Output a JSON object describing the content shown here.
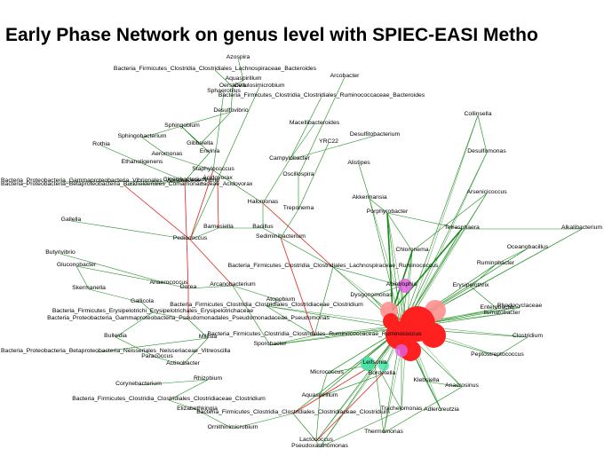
{
  "title": "Early Phase Network on genus level with SPIEC-EASI Metho",
  "edge_colors": {
    "positive": "#1a8a1a",
    "negative": "#e02020"
  },
  "node_colors": {
    "default": "#000000",
    "hub": "#ff2020",
    "hub_light": "#ff9090",
    "magenta": "#e060e0",
    "teal": "#40e0a0"
  },
  "nodes": [
    {
      "id": "n0",
      "label": "Azospira"
    },
    {
      "id": "n1",
      "label": "Bacteria_Firmicutes_Clostridia_Clostridiales_Lachnospiraceae_Bacteroides"
    },
    {
      "id": "n2",
      "label": "Aquaspirillum"
    },
    {
      "id": "n3",
      "label": "Oerskovia"
    },
    {
      "id": "n4",
      "label": "Cellulosimicrobium"
    },
    {
      "id": "n5",
      "label": "Arcobacter"
    },
    {
      "id": "n6",
      "label": "Sphaerotilus"
    },
    {
      "id": "n7",
      "label": "Bacteria_Firmicutes_Clostridia_Clostridiales_Ruminococcaceae_Bacteroides"
    },
    {
      "id": "n8",
      "label": "Desulfovibrio"
    },
    {
      "id": "n9",
      "label": "Collinsella"
    },
    {
      "id": "n10",
      "label": "Macellibacteroides"
    },
    {
      "id": "n11",
      "label": "Sphingobium"
    },
    {
      "id": "n12",
      "label": "Sphingobacterium"
    },
    {
      "id": "n13",
      "label": "Gibbsiella"
    },
    {
      "id": "n14",
      "label": "Desulfitobacterium"
    },
    {
      "id": "n15",
      "label": "Desulfomonas"
    },
    {
      "id": "n16",
      "label": "Aeromonas"
    },
    {
      "id": "n17",
      "label": "YRC22"
    },
    {
      "id": "n18",
      "label": "Rothia"
    },
    {
      "id": "n19",
      "label": "Erwinia"
    },
    {
      "id": "n20",
      "label": "Ethanoligenens"
    },
    {
      "id": "n21",
      "label": "Campylobacter"
    },
    {
      "id": "n22",
      "label": "Alistipes"
    },
    {
      "id": "n23",
      "label": "Bacteria_Proteobacteria_Gammaproteobacteria_Vibrionales_Vibrionaceae_Vibrio"
    },
    {
      "id": "n24",
      "label": "Bacteria_Proteobacteria_Betaproteobacteria_Burkholderiales_Comamonadaceae_Acidovorax"
    },
    {
      "id": "n25",
      "label": "Staphylococcus"
    },
    {
      "id": "n26",
      "label": "Acidovorax"
    },
    {
      "id": "n27",
      "label": "Cloacibacterium"
    },
    {
      "id": "n28",
      "label": "Oscillospira"
    },
    {
      "id": "n29",
      "label": "Akkermansia"
    },
    {
      "id": "n30",
      "label": "Arsenicicoccus"
    },
    {
      "id": "n31",
      "label": "Gallella"
    },
    {
      "id": "n32",
      "label": "Halomonas"
    },
    {
      "id": "n33",
      "label": "Treponema"
    },
    {
      "id": "n34",
      "label": "Porphyrobacter"
    },
    {
      "id": "n35",
      "label": "Alkalibacterium"
    },
    {
      "id": "n36",
      "label": "Tetrasphaera"
    },
    {
      "id": "n37",
      "label": "Oceanobacillus"
    },
    {
      "id": "n38",
      "label": "Pediococcus"
    },
    {
      "id": "n39",
      "label": "Barnesiella"
    },
    {
      "id": "n40",
      "label": "Bacillus"
    },
    {
      "id": "n41",
      "label": "Sediminibacterium"
    },
    {
      "id": "n42",
      "label": "Chloronema"
    },
    {
      "id": "n43",
      "label": "Butyrivibrio"
    },
    {
      "id": "n44",
      "label": "Gluconobacter"
    },
    {
      "id": "n45",
      "label": "Ruminobacter"
    },
    {
      "id": "n46",
      "label": "Bacteria_Firmicutes_Clostridia_Clostridiales_Lachnospiraceae_Ruminococcus"
    },
    {
      "id": "n47",
      "label": "Skermanella"
    },
    {
      "id": "n48",
      "label": "Erysipelothrix"
    },
    {
      "id": "n49",
      "label": "Anaerococcus"
    },
    {
      "id": "n50",
      "label": "Dorea"
    },
    {
      "id": "n51",
      "label": "Abiotrophia"
    },
    {
      "id": "n52",
      "label": "Enterobacter"
    },
    {
      "id": "n53",
      "label": "Arcanobacterium"
    },
    {
      "id": "n54",
      "label": "Dysgonomonas"
    },
    {
      "id": "n55",
      "label": "Gallicola"
    },
    {
      "id": "n56",
      "label": "Atopobium"
    },
    {
      "id": "n57",
      "label": "Bacteria_Firmicutes_Clostridia_Clostridiales_Clostridiaceae_Clostridium"
    },
    {
      "id": "n58",
      "label": "Bacteria_Firmicutes_Erysipelotrichi_Erysipelotrichales_Erysipelotrichaceae"
    },
    {
      "id": "n59",
      "label": "Bacteria_Proteobacteria_Gammaproteobacteria_Pseudomonadales_Pseudomonadaceae_Pseudomonas"
    },
    {
      "id": "n60",
      "label": "Rhodocyclaceae"
    },
    {
      "id": "n61",
      "label": "Ilumatobacter"
    },
    {
      "id": "n62",
      "label": "Bulleidia"
    },
    {
      "id": "n63",
      "label": "Bacteria_Firmicutes_Clostridia_Clostridiales_Ruminococcaceae_Ruminococcus"
    },
    {
      "id": "n64",
      "label": "Millisia"
    },
    {
      "id": "n65",
      "label": "Bacteria_Proteobacteria_Betaproteobacteria_Neisseriales_Neisseriaceae_Vitreoscilla"
    },
    {
      "id": "n66",
      "label": "Sporobacter"
    },
    {
      "id": "n67",
      "label": "Clostridium"
    },
    {
      "id": "n68",
      "label": "Peptostreptococcus"
    },
    {
      "id": "n69",
      "label": "Paracoccus"
    },
    {
      "id": "n70",
      "label": "Actinobacter"
    },
    {
      "id": "n71",
      "label": "Micrococcus"
    },
    {
      "id": "n72",
      "label": "Leifsonia"
    },
    {
      "id": "n73",
      "label": "Klebsiella"
    },
    {
      "id": "n74",
      "label": "Anaerosinus"
    },
    {
      "id": "n75",
      "label": "Corynebacterium"
    },
    {
      "id": "n76",
      "label": "Bordetella"
    },
    {
      "id": "n77",
      "label": "Rhizobium"
    },
    {
      "id": "n78",
      "label": "Bacteria_Firmicutes_Clostridia_Clostridiales_Clostridiaceae_Clostridium"
    },
    {
      "id": "n79",
      "label": "Aquaspirillum"
    },
    {
      "id": "n80",
      "label": "Adlercreutzia"
    },
    {
      "id": "n81",
      "label": "Elizabethkingia"
    },
    {
      "id": "n82",
      "label": "Trachelomonas"
    },
    {
      "id": "n83",
      "label": "Bacteria_Firmicutes_Clostridia_Clostridiales_Clostridiaceae_Clostridium"
    },
    {
      "id": "n84",
      "label": "Ornithinimicrobium"
    },
    {
      "id": "n85",
      "label": "Thermomonas"
    },
    {
      "id": "n86",
      "label": "Lactococcus"
    },
    {
      "id": "n87",
      "label": "Pseudoxanthomonas"
    }
  ]
}
